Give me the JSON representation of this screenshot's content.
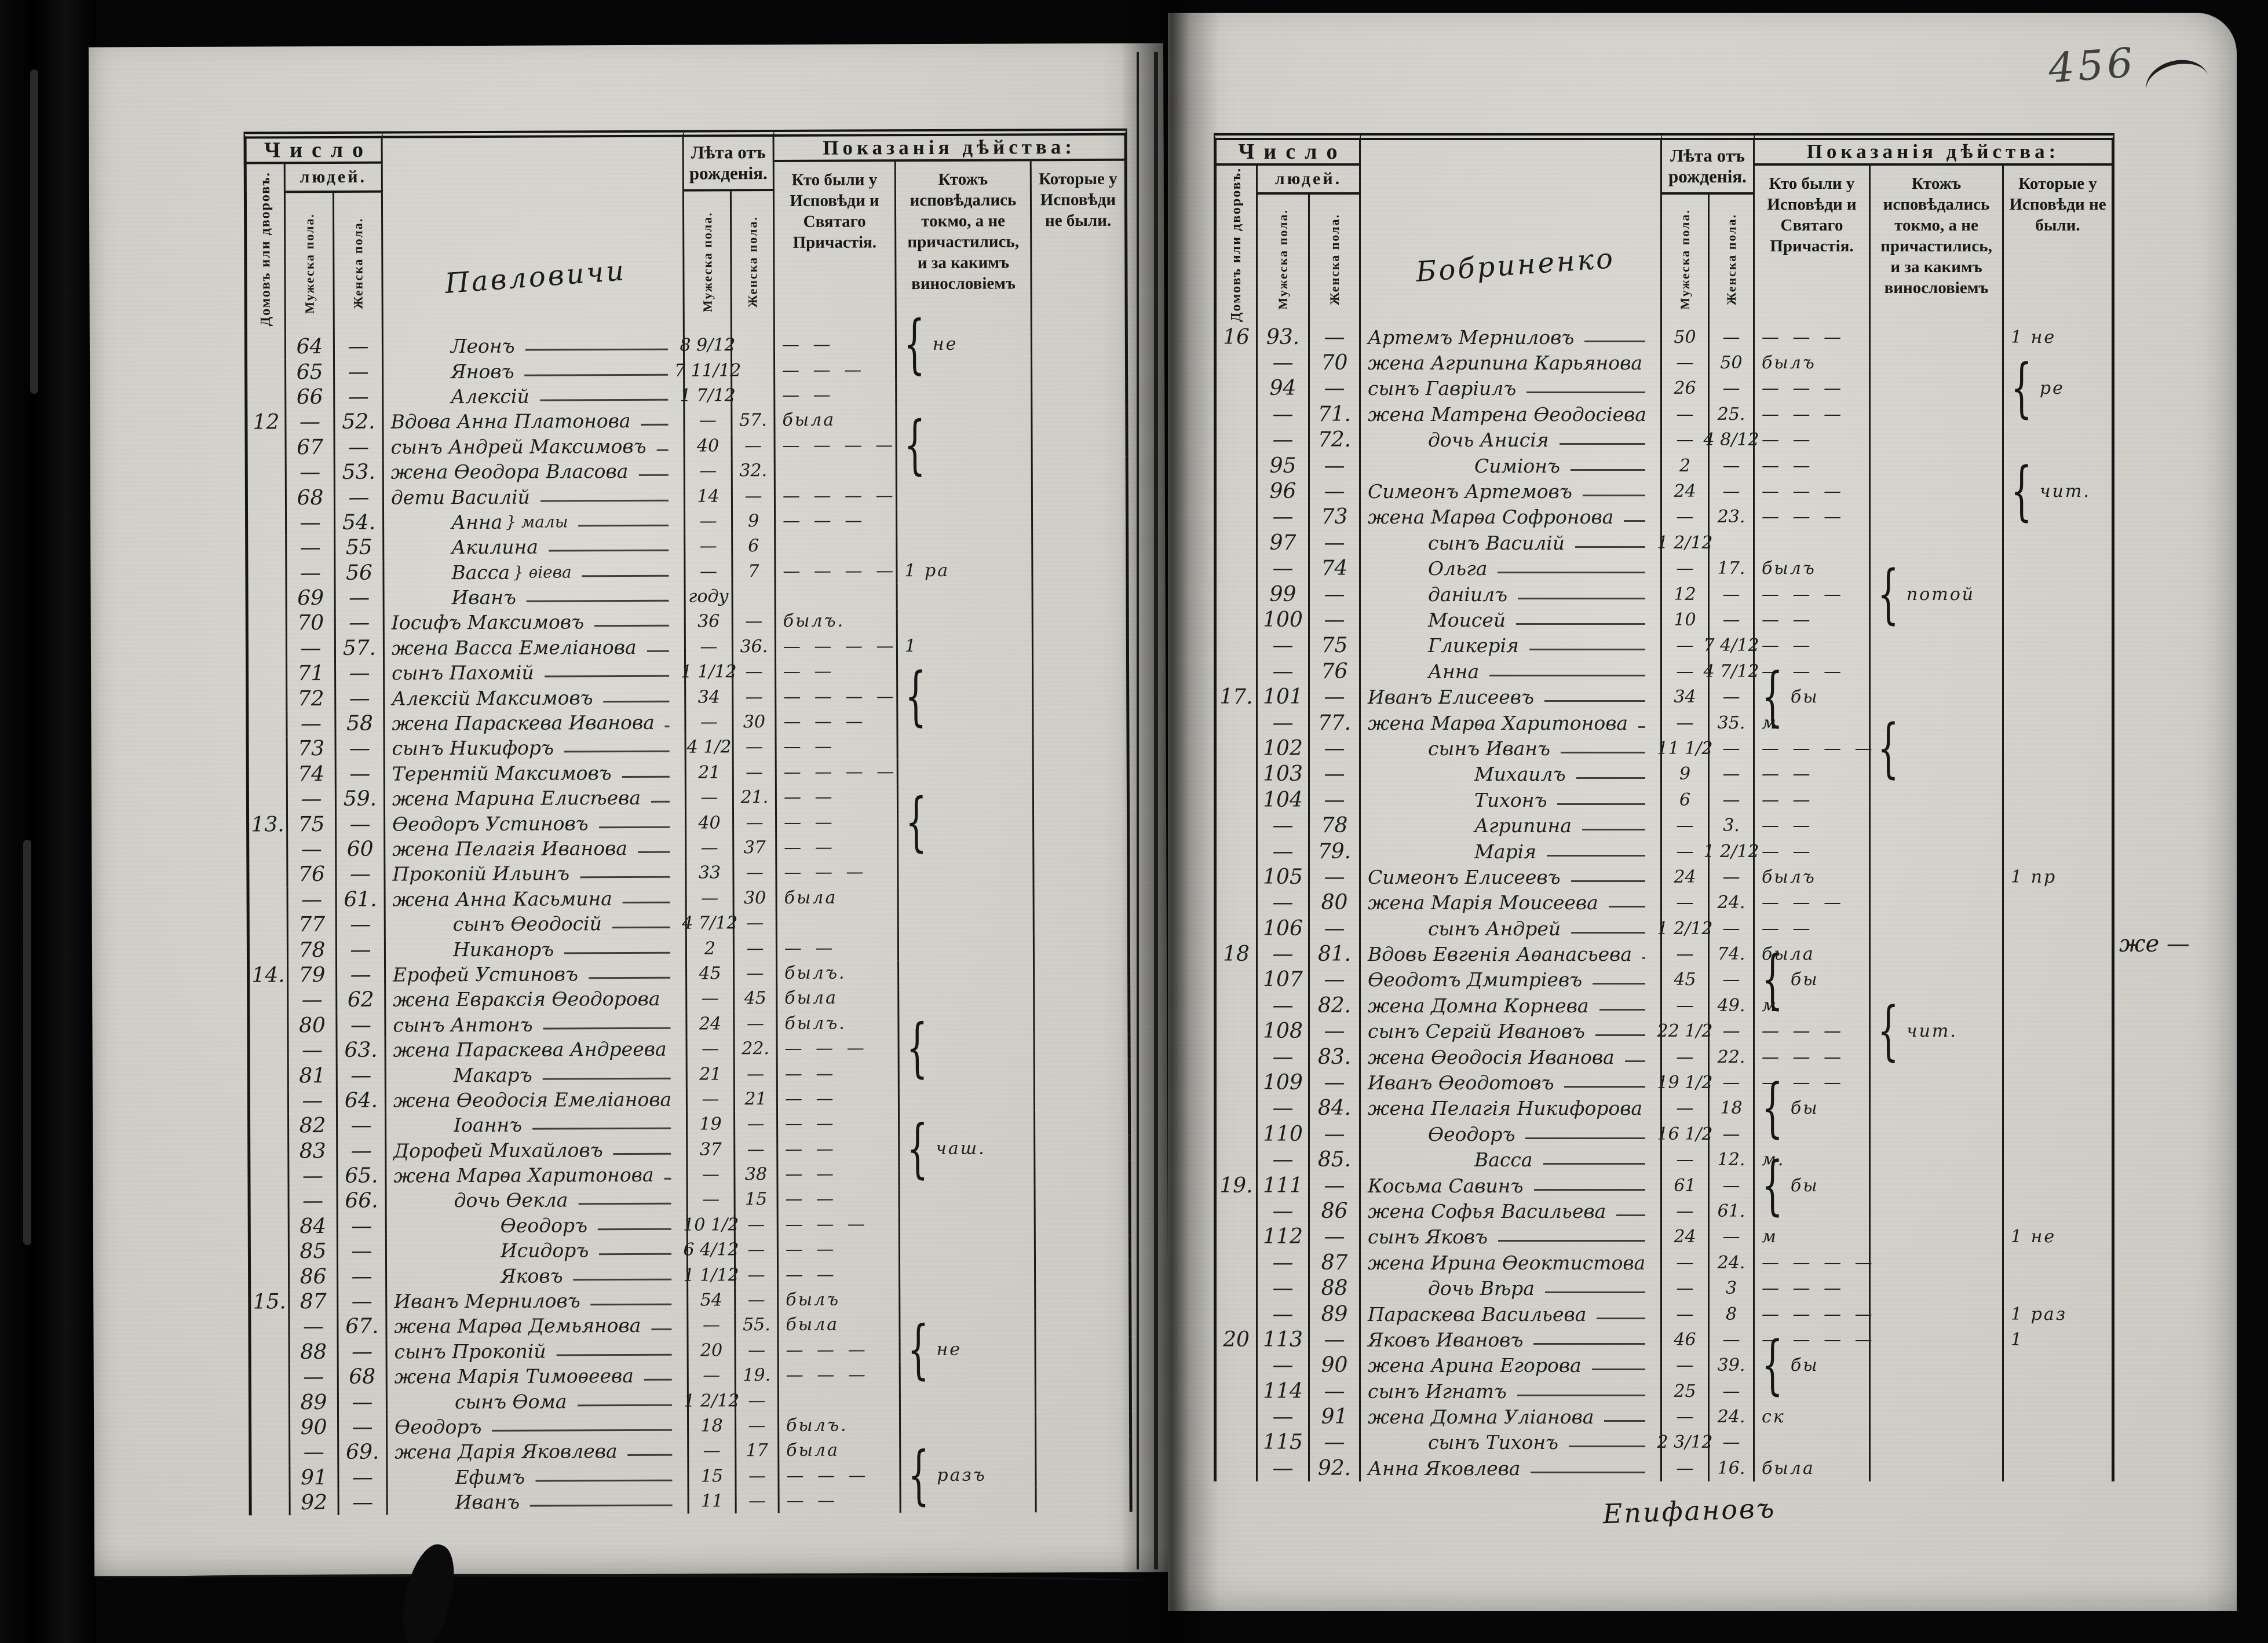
{
  "document_type": "Исповѣдная роспись (confession register), scanned book spread",
  "page_number": "456",
  "colors": {
    "paper": "#d7d5ce",
    "ink": "#1a1a1a",
    "background": "#060606",
    "pencil": "#3f3f3f"
  },
  "header": {
    "chislo": "Число",
    "lyudey": "людей.",
    "dvorov": "Домовъ или дворовъ.",
    "muzh_pola": "Мужеска пола.",
    "zhen_pola": "Женска пола.",
    "leta": "Лѣта отъ рожденія.",
    "pokazaniya": "Показанія дѣйства:",
    "kto_byli": "Кто были у Исповѣди и Святаго Прича­стія.",
    "ktozh": "Ктожъ исповѣдались токмо, а не причастились, и за какимъ винословіемъ",
    "kotorye": "Кото­рые у Испо­вѣди не были."
  },
  "row_format": [
    "household_no",
    "male_no",
    "female_no",
    "indent",
    "name",
    "side_note",
    "age_male",
    "age_female",
    "confession_note",
    "reason_note",
    "absence_note"
  ],
  "left_page": {
    "village": "Павловичи",
    "rows": [
      [
        "",
        "64",
        "—",
        1,
        "Леонъ",
        "",
        "8 9/12",
        "",
        "— —",
        "{не",
        ""
      ],
      [
        "",
        "65",
        "—",
        1,
        "Яновъ",
        "",
        "7 11/12",
        "",
        "— — —",
        "",
        ""
      ],
      [
        "",
        "66",
        "—",
        1,
        "Алексій",
        "",
        "1 7/12",
        "",
        "— —",
        "",
        ""
      ],
      [
        "12",
        "—",
        "52.",
        0,
        "Вдова Анна Платонова",
        "",
        "—",
        "57.",
        "была",
        "",
        ""
      ],
      [
        "",
        "67",
        "—",
        0,
        "сынъ Андрей Максимовъ",
        "",
        "40",
        "—",
        "— — — —",
        "{",
        ""
      ],
      [
        "",
        "—",
        "53.",
        0,
        "жена Ѳеодора Власова",
        "",
        "—",
        "32.",
        "",
        "",
        ""
      ],
      [
        "",
        "68",
        "—",
        0,
        "дети Василій",
        "",
        "14",
        "—",
        "— — — —",
        "",
        ""
      ],
      [
        "",
        "—",
        "54.",
        1,
        "Анна",
        "малы",
        "—",
        "9",
        "— — —",
        "",
        ""
      ],
      [
        "",
        "—",
        "55",
        1,
        "Акилина",
        "",
        "—",
        "6",
        "",
        "",
        ""
      ],
      [
        "",
        "—",
        "56",
        1,
        "Васса",
        "ѳіева",
        "—",
        "7",
        "— — — —",
        "1 ра",
        ""
      ],
      [
        "",
        "69",
        "—",
        1,
        "Иванъ",
        "",
        "году",
        "",
        "",
        "",
        ""
      ],
      [
        "",
        "70",
        "—",
        0,
        "Іосифъ Максимовъ",
        "",
        "36",
        "—",
        "былъ.",
        "",
        ""
      ],
      [
        "",
        "—",
        "57.",
        0,
        "жена Васса Емеліанова",
        "",
        "—",
        "36.",
        "— — — —",
        "1",
        ""
      ],
      [
        "",
        "71",
        "—",
        0,
        "сынъ Пахомій",
        "",
        "1 1/12",
        "—",
        "— —",
        "",
        ""
      ],
      [
        "",
        "72",
        "—",
        0,
        "Алексій Максимовъ",
        "",
        "34",
        "—",
        "— — — —",
        "{",
        ""
      ],
      [
        "",
        "—",
        "58",
        0,
        "жена Параскева Иванова",
        "",
        "—",
        "30",
        "— — —",
        "",
        ""
      ],
      [
        "",
        "73",
        "—",
        0,
        "сынъ Никифоръ",
        "",
        "4 1/2",
        "—",
        "— —",
        "",
        ""
      ],
      [
        "",
        "74",
        "—",
        0,
        "Терентій Максимовъ",
        "",
        "21",
        "—",
        "— — — —",
        "",
        ""
      ],
      [
        "",
        "—",
        "59.",
        0,
        "жена Марина Елисѣева",
        "",
        "—",
        "21.",
        "— —",
        "",
        ""
      ],
      [
        "13.",
        "75",
        "—",
        0,
        "Ѳеодоръ Устиновъ",
        "",
        "40",
        "—",
        "— —",
        "{",
        ""
      ],
      [
        "",
        "—",
        "60",
        0,
        "жена Пелагія Иванова",
        "",
        "—",
        "37",
        "— —",
        "",
        ""
      ],
      [
        "",
        "76",
        "—",
        0,
        "Прокопій Ильинъ",
        "",
        "33",
        "—",
        "— — —",
        "",
        ""
      ],
      [
        "",
        "—",
        "61.",
        0,
        "жена Анна Касьмина",
        "",
        "—",
        "30",
        "была",
        "",
        ""
      ],
      [
        "",
        "77",
        "—",
        1,
        "сынъ Ѳеодосій",
        "",
        "4 7/12",
        "—",
        "",
        "",
        ""
      ],
      [
        "",
        "78",
        "—",
        1,
        "Никаноръ",
        "",
        "2",
        "—",
        "— —",
        "",
        ""
      ],
      [
        "14.",
        "79",
        "—",
        0,
        "Ерофей Устиновъ",
        "",
        "45",
        "—",
        "былъ.",
        "",
        ""
      ],
      [
        "",
        "—",
        "62",
        0,
        "жена Евраксія Ѳеодорова",
        "",
        "—",
        "45",
        "была",
        "",
        ""
      ],
      [
        "",
        "80",
        "—",
        0,
        "сынъ Антонъ",
        "",
        "24",
        "—",
        "былъ.",
        "",
        ""
      ],
      [
        "",
        "—",
        "63.",
        0,
        "жена Параскева Андреева",
        "",
        "—",
        "22.",
        "— — —",
        "{",
        ""
      ],
      [
        "",
        "81",
        "—",
        1,
        "Макаръ",
        "",
        "21",
        "—",
        "— —",
        "",
        ""
      ],
      [
        "",
        "—",
        "64.",
        0,
        "жена Ѳеодосія Емеліанова",
        "",
        "—",
        "21",
        "— —",
        "",
        ""
      ],
      [
        "",
        "82",
        "—",
        1,
        "Іоаннъ",
        "",
        "19",
        "—",
        "— —",
        "",
        ""
      ],
      [
        "",
        "83",
        "—",
        0,
        "Дорофей Михайловъ",
        "",
        "37",
        "—",
        "— —",
        "{чаш.",
        ""
      ],
      [
        "",
        "—",
        "65.",
        0,
        "жена Марѳа Харитонова",
        "",
        "—",
        "38",
        "— —",
        "",
        ""
      ],
      [
        "",
        "—",
        "66.",
        1,
        "дочь Ѳекла",
        "",
        "—",
        "15",
        "— —",
        "",
        ""
      ],
      [
        "",
        "84",
        "—",
        2,
        "Ѳеодоръ",
        "",
        "10 1/2",
        "—",
        "— — —",
        "",
        ""
      ],
      [
        "",
        "85",
        "—",
        2,
        "Исидоръ",
        "",
        "6 4/12",
        "—",
        "— —",
        "",
        ""
      ],
      [
        "",
        "86",
        "—",
        2,
        "Яковъ",
        "",
        "1 1/12",
        "—",
        "— —",
        "",
        ""
      ],
      [
        "15.",
        "87",
        "—",
        0,
        "Иванъ Мерниловъ",
        "",
        "54",
        "—",
        "былъ",
        "",
        ""
      ],
      [
        "",
        "—",
        "67.",
        0,
        "жена Марѳа Демьянова",
        "",
        "—",
        "55.",
        "была",
        "",
        ""
      ],
      [
        "",
        "88",
        "—",
        0,
        "сынъ Прокопій",
        "",
        "20",
        "—",
        "— — —",
        "{не",
        ""
      ],
      [
        "",
        "—",
        "68",
        0,
        "жена Марія Тимоѳеева",
        "",
        "—",
        "19.",
        "— — —",
        "",
        ""
      ],
      [
        "",
        "89",
        "—",
        1,
        "сынъ Ѳома",
        "",
        "1 2/12",
        "—",
        "",
        "",
        ""
      ],
      [
        "",
        "90",
        "—",
        0,
        "Ѳеодоръ",
        "",
        "18",
        "—",
        "былъ.",
        "",
        ""
      ],
      [
        "",
        "—",
        "69.",
        0,
        "жена Дарія Яковлева",
        "",
        "—",
        "17",
        "была",
        "",
        ""
      ],
      [
        "",
        "91",
        "—",
        1,
        "Ефимъ",
        "",
        "15",
        "—",
        "— — —",
        "{разъ",
        ""
      ],
      [
        "",
        "92",
        "—",
        1,
        "Иванъ",
        "",
        "11",
        "—",
        "— —",
        "",
        ""
      ]
    ]
  },
  "right_page": {
    "village": "Бобриненко",
    "margin_note": "же —",
    "signature": "Епифановъ",
    "rows": [
      [
        "16",
        "93.",
        "—",
        0,
        "Артемъ Мерниловъ",
        "",
        "50",
        "—",
        "— — —",
        "",
        "1 не"
      ],
      [
        "",
        "—",
        "70",
        0,
        "жена Агрипина Карьянова",
        "",
        "—",
        "50",
        "былъ",
        "",
        ""
      ],
      [
        "",
        "94",
        "—",
        0,
        "сынъ Гавріилъ",
        "",
        "26",
        "—",
        "— — —",
        "",
        "{ре"
      ],
      [
        "",
        "—",
        "71.",
        0,
        "жена Матрена Ѳеодосіева",
        "",
        "—",
        "25.",
        "— — —",
        "",
        ""
      ],
      [
        "",
        "—",
        "72.",
        1,
        "дочь Анисія",
        "",
        "—",
        "4 8/12",
        "— —",
        "",
        ""
      ],
      [
        "",
        "95",
        "—",
        2,
        "Симіонъ",
        "",
        "2",
        "—",
        "— —",
        "",
        ""
      ],
      [
        "",
        "96",
        "—",
        0,
        "Симеонъ Артемовъ",
        "",
        "24",
        "—",
        "— — —",
        "",
        "{чит."
      ],
      [
        "",
        "—",
        "73",
        0,
        "жена Марѳа Софронова",
        "",
        "—",
        "23.",
        "— — —",
        "",
        ""
      ],
      [
        "",
        "97",
        "—",
        1,
        "сынъ Василій",
        "",
        "1 2/12",
        "",
        "",
        "",
        ""
      ],
      [
        "",
        "—",
        "74",
        1,
        "Ольга",
        "",
        "—",
        "17.",
        "былъ",
        "",
        ""
      ],
      [
        "",
        "99",
        "—",
        1,
        "даніилъ",
        "",
        "12",
        "—",
        "— — —",
        "{потой",
        ""
      ],
      [
        "",
        "100",
        "—",
        1,
        "Моисей",
        "",
        "10",
        "—",
        "— —",
        "",
        ""
      ],
      [
        "",
        "—",
        "75",
        1,
        "Гликерія",
        "",
        "—",
        "7 4/12",
        "— —",
        "",
        ""
      ],
      [
        "",
        "—",
        "76",
        1,
        "Анна",
        "",
        "—",
        "4 7/12",
        "— — —",
        "",
        ""
      ],
      [
        "17.",
        "101",
        "—",
        0,
        "Иванъ Елисеевъ",
        "",
        "34",
        "—",
        "{бы",
        "",
        ""
      ],
      [
        "",
        "—",
        "77.",
        0,
        "жена Марѳа Харитонова",
        "",
        "—",
        "35.",
        "м",
        "",
        ""
      ],
      [
        "",
        "102",
        "—",
        1,
        "сынъ Иванъ",
        "",
        "11 1/2",
        "—",
        "— — — —",
        "{",
        ""
      ],
      [
        "",
        "103",
        "—",
        2,
        "Михаилъ",
        "",
        "9",
        "—",
        "— —",
        "",
        ""
      ],
      [
        "",
        "104",
        "—",
        2,
        "Тихонъ",
        "",
        "6",
        "—",
        "— —",
        "",
        ""
      ],
      [
        "",
        "—",
        "78",
        2,
        "Агрипина",
        "",
        "—",
        "3.",
        "— —",
        "",
        ""
      ],
      [
        "",
        "—",
        "79.",
        2,
        "Марія",
        "",
        "—",
        "1 2/12",
        "— —",
        "",
        ""
      ],
      [
        "",
        "105",
        "—",
        0,
        "Симеонъ Елисеевъ",
        "",
        "24",
        "—",
        "былъ",
        "",
        "1 пр"
      ],
      [
        "",
        "—",
        "80",
        0,
        "жена Марія Моисеева",
        "",
        "—",
        "24.",
        "— — —",
        "",
        ""
      ],
      [
        "",
        "106",
        "—",
        1,
        "сынъ Андрей",
        "",
        "1 2/12",
        "—",
        "— —",
        "",
        ""
      ],
      [
        "18",
        "—",
        "81.",
        0,
        "Вдовь Евгенія Аѳанасьева",
        "",
        "—",
        "74.",
        "была",
        "",
        ""
      ],
      [
        "",
        "107",
        "—",
        0,
        "Ѳеодотъ Дмитріевъ",
        "",
        "45",
        "—",
        "{бы",
        "",
        ""
      ],
      [
        "",
        "—",
        "82.",
        0,
        "жена Домна Корнева",
        "",
        "—",
        "49.",
        "м",
        "",
        ""
      ],
      [
        "",
        "108",
        "—",
        0,
        "сынъ Сергій Ивановъ",
        "",
        "22 1/2",
        "—",
        "— — —",
        "{чит.",
        ""
      ],
      [
        "",
        "—",
        "83.",
        0,
        "жена Ѳеодосія Иванова",
        "",
        "—",
        "22.",
        "— — —",
        "",
        ""
      ],
      [
        "",
        "109",
        "—",
        0,
        "Иванъ Ѳеодотовъ",
        "",
        "19 1/2",
        "—",
        "— — —",
        "",
        ""
      ],
      [
        "",
        "—",
        "84.",
        0,
        "жена Пелагія Никифорова",
        "",
        "—",
        "18",
        "{бы",
        "",
        ""
      ],
      [
        "",
        "110",
        "—",
        1,
        "Ѳеодоръ",
        "",
        "16 1/2",
        "—",
        "",
        "",
        ""
      ],
      [
        "",
        "—",
        "85.",
        2,
        "Васса",
        "",
        "—",
        "12.",
        "м.",
        "",
        ""
      ],
      [
        "19.",
        "111",
        "—",
        0,
        "Косьма Савинъ",
        "",
        "61",
        "—",
        "{бы",
        "",
        ""
      ],
      [
        "",
        "—",
        "86",
        0,
        "жена Софья Васильева",
        "",
        "—",
        "61.",
        "",
        "",
        ""
      ],
      [
        "",
        "112",
        "—",
        0,
        "сынъ Яковъ",
        "",
        "24",
        "—",
        "м",
        "",
        "1 не"
      ],
      [
        "",
        "—",
        "87",
        0,
        "жена Ирина Ѳеоктистова",
        "",
        "—",
        "24.",
        "— — — —",
        "",
        ""
      ],
      [
        "",
        "—",
        "88",
        1,
        "дочь Вѣра",
        "",
        "—",
        "3",
        "— — —",
        "",
        ""
      ],
      [
        "",
        "—",
        "89",
        0,
        "Параскева Васильева",
        "",
        "—",
        "8",
        "— — — —",
        "",
        "1 раз"
      ],
      [
        "20",
        "113",
        "—",
        0,
        "Яковъ Ивановъ",
        "",
        "46",
        "—",
        "— — — —",
        "",
        "1"
      ],
      [
        "",
        "—",
        "90",
        0,
        "жена Арина Егорова",
        "",
        "—",
        "39.",
        "{бы",
        "",
        ""
      ],
      [
        "",
        "114",
        "—",
        0,
        "сынъ Игнатъ",
        "",
        "25",
        "—",
        "",
        "",
        ""
      ],
      [
        "",
        "—",
        "91",
        0,
        "жена Домна Уліанова",
        "",
        "—",
        "24.",
        "ск",
        "",
        ""
      ],
      [
        "",
        "115",
        "—",
        1,
        "сынъ Тихонъ",
        "",
        "2 3/12",
        "—",
        "",
        "",
        ""
      ],
      [
        "",
        "—",
        "92.",
        0,
        "Анна Яковлева",
        "",
        "—",
        "16.",
        "была",
        "",
        ""
      ]
    ]
  }
}
